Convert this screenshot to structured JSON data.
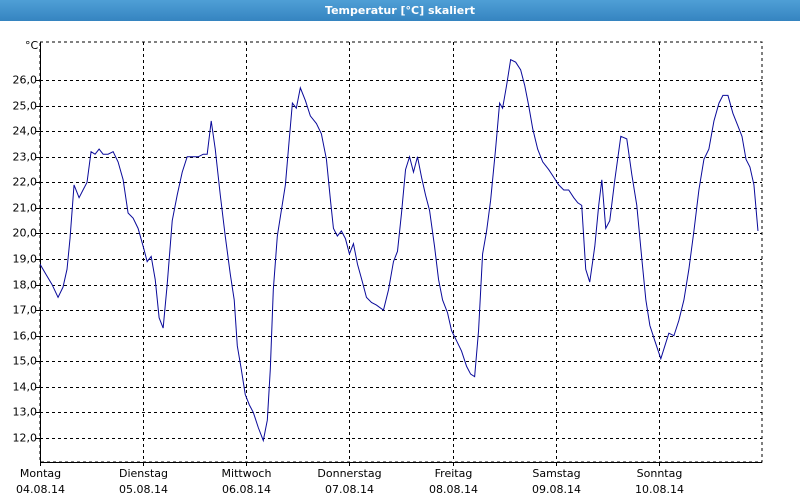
{
  "chart_data": {
    "type": "line",
    "title": "Temperatur [°C] skaliert",
    "y_unit": "°C",
    "xlim": [
      0,
      7
    ],
    "ylim": [
      11.06,
      27.49
    ],
    "xticks": [
      {
        "value": 0,
        "label": "Montag\n04.08.14"
      },
      {
        "value": 1,
        "label": "Dienstag\n05.08.14"
      },
      {
        "value": 2,
        "label": "Mittwoch\n06.08.14"
      },
      {
        "value": 3,
        "label": "Donnerstag\n07.08.14"
      },
      {
        "value": 4,
        "label": "Freitag\n08.08.14"
      },
      {
        "value": 5,
        "label": "Samstag\n09.08.14"
      },
      {
        "value": 6,
        "label": "Sonntag\n10.08.14"
      }
    ],
    "yticks": [
      {
        "value": 12,
        "label": "12,0"
      },
      {
        "value": 13,
        "label": "13,0"
      },
      {
        "value": 14,
        "label": "14,0"
      },
      {
        "value": 15,
        "label": "15,0"
      },
      {
        "value": 16,
        "label": "16,0"
      },
      {
        "value": 17,
        "label": "17,0"
      },
      {
        "value": 18,
        "label": "18,0"
      },
      {
        "value": 19,
        "label": "19,0"
      },
      {
        "value": 20,
        "label": "20,0"
      },
      {
        "value": 21,
        "label": "21,0"
      },
      {
        "value": 22,
        "label": "22,0"
      },
      {
        "value": 23,
        "label": "23,0"
      },
      {
        "value": 24,
        "label": "24,0"
      },
      {
        "value": 25,
        "label": "25,0"
      },
      {
        "value": 26,
        "label": "26,0"
      }
    ],
    "grid": true,
    "color": "#0a0a9a",
    "x": [
      0,
      0.058,
      0.117,
      0.175,
      0.223,
      0.262,
      0.291,
      0.33,
      0.379,
      0.417,
      0.456,
      0.495,
      0.534,
      0.573,
      0.612,
      0.66,
      0.709,
      0.757,
      0.806,
      0.854,
      0.903,
      0.951,
      1.0,
      1.039,
      1.078,
      1.117,
      1.155,
      1.194,
      1.233,
      1.282,
      1.33,
      1.379,
      1.427,
      1.485,
      1.534,
      1.583,
      1.621,
      1.66,
      1.699,
      1.748,
      1.796,
      1.845,
      1.883,
      1.913,
      1.951,
      1.99,
      2.029,
      2.068,
      2.117,
      2.165,
      2.204,
      2.233,
      2.262,
      2.301,
      2.34,
      2.379,
      2.417,
      2.447,
      2.485,
      2.524,
      2.573,
      2.621,
      2.68,
      2.728,
      2.777,
      2.816,
      2.845,
      2.883,
      2.922,
      2.961,
      3.0,
      3.039,
      3.078,
      3.126,
      3.165,
      3.214,
      3.262,
      3.33,
      3.379,
      3.427,
      3.466,
      3.505,
      3.544,
      3.583,
      3.621,
      3.66,
      3.699,
      3.738,
      3.777,
      3.825,
      3.864,
      3.903,
      3.951,
      3.99,
      4.039,
      4.087,
      4.136,
      4.175,
      4.214,
      4.252,
      4.291,
      4.33,
      4.369,
      4.417,
      4.456,
      4.485,
      4.524,
      4.563,
      4.612,
      4.66,
      4.699,
      4.738,
      4.777,
      4.825,
      4.874,
      4.932,
      4.981,
      5.029,
      5.078,
      5.126,
      5.175,
      5.214,
      5.252,
      5.291,
      5.33,
      5.379,
      5.417,
      5.447,
      5.485,
      5.524,
      5.573,
      5.631,
      5.689,
      5.738,
      5.786,
      5.835,
      5.874,
      5.913,
      5.961,
      6.019,
      6.058,
      6.097,
      6.146,
      6.194,
      6.243,
      6.291,
      6.34,
      6.388,
      6.437,
      6.485,
      6.534,
      6.583,
      6.621,
      6.67,
      6.718,
      6.767,
      6.806,
      6.845,
      6.883,
      6.922,
      6.961
    ],
    "values": [
      18.8,
      18.4,
      18.0,
      17.5,
      17.9,
      18.6,
      19.8,
      21.9,
      21.4,
      21.7,
      22.0,
      23.2,
      23.1,
      23.3,
      23.1,
      23.1,
      23.2,
      22.8,
      22.1,
      20.8,
      20.6,
      20.2,
      19.5,
      18.9,
      19.1,
      18.2,
      16.7,
      16.3,
      18.0,
      20.5,
      21.5,
      22.4,
      23.0,
      23.0,
      23.0,
      23.1,
      23.1,
      24.4,
      23.3,
      21.5,
      19.9,
      18.4,
      17.4,
      15.6,
      14.7,
      13.7,
      13.3,
      13.0,
      12.4,
      11.9,
      12.7,
      14.7,
      17.8,
      19.9,
      20.9,
      21.9,
      23.7,
      25.1,
      24.9,
      25.7,
      25.2,
      24.6,
      24.3,
      23.9,
      22.9,
      21.3,
      20.2,
      19.9,
      20.1,
      19.8,
      19.2,
      19.6,
      18.8,
      18.1,
      17.5,
      17.3,
      17.2,
      17.0,
      17.8,
      18.9,
      19.3,
      20.8,
      22.5,
      23.0,
      22.4,
      23.0,
      22.2,
      21.5,
      20.9,
      19.5,
      18.2,
      17.4,
      16.9,
      16.2,
      15.8,
      15.4,
      14.8,
      14.5,
      14.4,
      16.2,
      19.2,
      20.1,
      21.3,
      23.3,
      25.1,
      24.9,
      25.8,
      26.8,
      26.7,
      26.4,
      25.8,
      25.0,
      24.1,
      23.3,
      22.8,
      22.5,
      22.2,
      21.9,
      21.7,
      21.7,
      21.4,
      21.2,
      21.1,
      18.6,
      18.1,
      19.5,
      21.1,
      22.1,
      20.2,
      20.5,
      22.1,
      23.8,
      23.7,
      22.3,
      21.1,
      19.0,
      17.4,
      16.4,
      15.8,
      15.1,
      15.6,
      16.1,
      16.0,
      16.6,
      17.4,
      18.6,
      20.1,
      21.7,
      22.9,
      23.3,
      24.4,
      25.1,
      25.4,
      25.4,
      24.7,
      24.2,
      23.8,
      22.9,
      22.6,
      21.9,
      20.1
    ]
  }
}
